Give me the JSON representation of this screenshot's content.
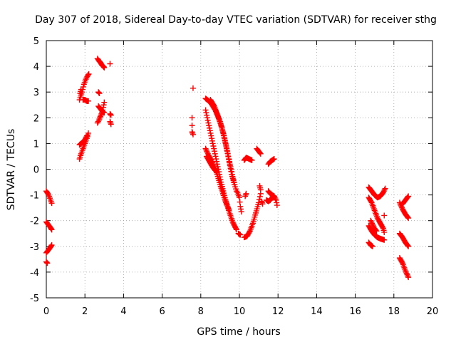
{
  "chart_data": {
    "type": "scatter",
    "title": "Day 307 of 2018, Sidereal Day-to-day VTEC variation (SDTVAR) for receiver sthg",
    "xlabel": "GPS time / hours",
    "ylabel": "SDTVAR / TECUs",
    "xlim": [
      0,
      20
    ],
    "ylim": [
      -5,
      5
    ],
    "x_ticks": [
      0,
      2,
      4,
      6,
      8,
      10,
      12,
      14,
      16,
      18,
      20
    ],
    "y_ticks": [
      -5,
      -4,
      -3,
      -2,
      -1,
      0,
      1,
      2,
      3,
      4,
      5
    ],
    "x_tick_labels": [
      "0",
      "2",
      "4",
      "6",
      "8",
      "10",
      "12",
      "14",
      "16",
      "18",
      "20"
    ],
    "y_tick_labels": [
      "-5",
      "-4",
      "-3",
      "-2",
      "-1",
      "0",
      "1",
      "2",
      "3",
      "4",
      "5"
    ],
    "grid": true,
    "marker": "+",
    "color": "#ff0000",
    "series": [
      {
        "name": "SDTVAR",
        "segments": [
          [
            [
              0.0,
              -0.85
            ],
            [
              0.08,
              -0.95
            ],
            [
              0.15,
              -1.05
            ],
            [
              0.22,
              -1.2
            ],
            [
              0.28,
              -1.32
            ]
          ],
          [
            [
              0.0,
              -2.05
            ],
            [
              0.1,
              -2.15
            ],
            [
              0.2,
              -2.25
            ],
            [
              0.28,
              -2.35
            ]
          ],
          [
            [
              0.0,
              -3.25
            ],
            [
              0.1,
              -3.15
            ],
            [
              0.2,
              -3.05
            ],
            [
              0.28,
              -2.95
            ]
          ],
          [
            [
              0.0,
              -3.6
            ],
            [
              0.05,
              -3.65
            ]
          ],
          [
            [
              1.72,
              0.4
            ],
            [
              1.8,
              0.6
            ],
            [
              1.9,
              0.8
            ],
            [
              2.0,
              1.0
            ],
            [
              2.1,
              1.2
            ],
            [
              2.18,
              1.4
            ]
          ],
          [
            [
              1.72,
              0.95
            ],
            [
              1.8,
              1.0
            ],
            [
              1.9,
              1.05
            ],
            [
              2.0,
              1.15
            ],
            [
              2.1,
              1.3
            ]
          ],
          [
            [
              1.72,
              2.7
            ],
            [
              1.85,
              3.0
            ],
            [
              1.95,
              3.3
            ],
            [
              2.05,
              3.5
            ],
            [
              2.15,
              3.65
            ],
            [
              2.2,
              3.7
            ]
          ],
          [
            [
              1.75,
              2.95
            ],
            [
              1.8,
              3.1
            ]
          ],
          [
            [
              1.9,
              2.7
            ],
            [
              2.0,
              2.7
            ],
            [
              2.1,
              2.65
            ],
            [
              2.18,
              2.65
            ]
          ],
          [
            [
              2.65,
              4.3
            ],
            [
              2.72,
              4.22
            ],
            [
              2.8,
              4.15
            ],
            [
              2.88,
              4.05
            ],
            [
              2.95,
              4.0
            ],
            [
              3.0,
              3.95
            ]
          ],
          [
            [
              2.65,
              1.8
            ],
            [
              2.72,
              1.9
            ],
            [
              2.8,
              2.05
            ],
            [
              2.88,
              2.2
            ],
            [
              2.95,
              2.4
            ],
            [
              3.0,
              2.6
            ]
          ],
          [
            [
              2.7,
              2.45
            ],
            [
              2.8,
              2.35
            ],
            [
              2.9,
              2.25
            ],
            [
              3.0,
              2.2
            ]
          ],
          [
            [
              2.7,
              3.0
            ],
            [
              2.75,
              2.95
            ]
          ],
          [
            [
              3.3,
              4.1
            ]
          ],
          [
            [
              3.3,
              2.15
            ],
            [
              3.35,
              2.1
            ]
          ],
          [
            [
              3.3,
              1.85
            ],
            [
              3.35,
              1.75
            ]
          ],
          [
            [
              7.6,
              3.15
            ]
          ],
          [
            [
              7.55,
              2.0
            ]
          ],
          [
            [
              7.55,
              1.7
            ]
          ],
          [
            [
              7.55,
              1.45
            ],
            [
              7.6,
              1.35
            ]
          ],
          [
            [
              8.25,
              2.75
            ],
            [
              8.5,
              2.6
            ],
            [
              8.75,
              2.3
            ],
            [
              9.0,
              1.85
            ],
            [
              9.2,
              1.3
            ],
            [
              9.4,
              0.6
            ],
            [
              9.6,
              -0.2
            ],
            [
              9.75,
              -0.6
            ],
            [
              9.85,
              -0.85
            ]
          ],
          [
            [
              8.25,
              2.3
            ],
            [
              8.45,
              1.6
            ],
            [
              8.65,
              0.9
            ],
            [
              8.85,
              0.2
            ],
            [
              9.05,
              -0.5
            ],
            [
              9.25,
              -1.1
            ],
            [
              9.45,
              -1.6
            ],
            [
              9.65,
              -2.05
            ],
            [
              9.85,
              -2.35
            ]
          ],
          [
            [
              8.25,
              0.8
            ],
            [
              8.4,
              0.55
            ],
            [
              8.55,
              0.35
            ],
            [
              8.7,
              0.1
            ],
            [
              8.85,
              -0.2
            ],
            [
              9.0,
              -0.6
            ],
            [
              9.15,
              -0.95
            ],
            [
              9.3,
              -1.3
            ],
            [
              9.45,
              -1.55
            ]
          ],
          [
            [
              8.3,
              0.5
            ],
            [
              8.45,
              0.3
            ],
            [
              8.6,
              0.1
            ],
            [
              8.75,
              -0.05
            ]
          ],
          [
            [
              8.5,
              2.7
            ],
            [
              8.7,
              2.45
            ],
            [
              8.9,
              2.05
            ],
            [
              9.1,
              1.6
            ],
            [
              9.3,
              0.95
            ],
            [
              9.45,
              0.4
            ],
            [
              9.6,
              -0.1
            ],
            [
              9.75,
              -0.6
            ]
          ],
          [
            [
              9.9,
              -0.9
            ],
            [
              10.0,
              -1.1
            ],
            [
              10.05,
              -1.45
            ],
            [
              10.1,
              -1.65
            ]
          ],
          [
            [
              9.95,
              -2.5
            ],
            [
              10.05,
              -2.55
            ]
          ],
          [
            [
              10.25,
              -2.65
            ],
            [
              10.4,
              -2.6
            ],
            [
              10.55,
              -2.4
            ],
            [
              10.7,
              -2.1
            ],
            [
              10.85,
              -1.7
            ],
            [
              11.0,
              -1.3
            ],
            [
              11.1,
              -0.95
            ]
          ],
          [
            [
              10.25,
              0.35
            ],
            [
              10.35,
              0.45
            ],
            [
              10.45,
              0.42
            ],
            [
              10.55,
              0.38
            ],
            [
              10.65,
              0.35
            ]
          ],
          [
            [
              10.3,
              -1.05
            ],
            [
              10.35,
              -0.95
            ]
          ],
          [
            [
              10.9,
              0.8
            ],
            [
              11.0,
              0.7
            ],
            [
              11.1,
              0.6
            ]
          ],
          [
            [
              11.05,
              -0.65
            ],
            [
              11.1,
              -0.8
            ]
          ],
          [
            [
              11.15,
              -1.25
            ],
            [
              11.2,
              -1.35
            ]
          ],
          [
            [
              11.4,
              -1.2
            ],
            [
              11.5,
              -1.25
            ],
            [
              11.6,
              -1.2
            ],
            [
              11.7,
              -1.1
            ],
            [
              11.8,
              -1.05
            ],
            [
              11.9,
              -1.2
            ],
            [
              11.95,
              -1.4
            ]
          ],
          [
            [
              11.5,
              -0.85
            ],
            [
              11.6,
              -0.95
            ],
            [
              11.7,
              -1.0
            ],
            [
              11.8,
              -1.05
            ]
          ],
          [
            [
              11.5,
              0.2
            ],
            [
              11.6,
              0.3
            ],
            [
              11.7,
              0.35
            ],
            [
              11.8,
              0.4
            ]
          ],
          [
            [
              16.7,
              -0.7
            ],
            [
              16.85,
              -0.85
            ],
            [
              17.0,
              -1.0
            ],
            [
              17.15,
              -1.1
            ],
            [
              17.3,
              -1.05
            ],
            [
              17.45,
              -0.9
            ],
            [
              17.55,
              -0.75
            ]
          ],
          [
            [
              16.7,
              -1.1
            ],
            [
              16.85,
              -1.3
            ],
            [
              17.0,
              -1.6
            ],
            [
              17.15,
              -1.9
            ],
            [
              17.3,
              -2.1
            ],
            [
              17.45,
              -2.3
            ],
            [
              17.5,
              -2.45
            ]
          ],
          [
            [
              16.7,
              -2.2
            ],
            [
              16.85,
              -2.4
            ],
            [
              17.0,
              -2.55
            ],
            [
              17.15,
              -2.65
            ],
            [
              17.3,
              -2.7
            ],
            [
              17.5,
              -2.75
            ]
          ],
          [
            [
              16.7,
              -2.85
            ],
            [
              16.8,
              -2.95
            ],
            [
              16.9,
              -3.0
            ]
          ],
          [
            [
              16.8,
              -2.0
            ],
            [
              16.9,
              -2.15
            ],
            [
              17.0,
              -2.3
            ],
            [
              17.1,
              -2.4
            ]
          ],
          [
            [
              17.5,
              -1.8
            ]
          ],
          [
            [
              18.3,
              -1.3
            ],
            [
              18.45,
              -1.55
            ],
            [
              18.6,
              -1.75
            ],
            [
              18.75,
              -1.9
            ]
          ],
          [
            [
              18.45,
              -1.35
            ],
            [
              18.55,
              -1.25
            ],
            [
              18.65,
              -1.15
            ],
            [
              18.75,
              -1.05
            ]
          ],
          [
            [
              18.3,
              -2.5
            ],
            [
              18.45,
              -2.65
            ],
            [
              18.6,
              -2.85
            ],
            [
              18.75,
              -3.0
            ]
          ],
          [
            [
              18.3,
              -3.45
            ],
            [
              18.45,
              -3.65
            ],
            [
              18.6,
              -3.95
            ],
            [
              18.75,
              -4.2
            ]
          ]
        ]
      }
    ]
  }
}
